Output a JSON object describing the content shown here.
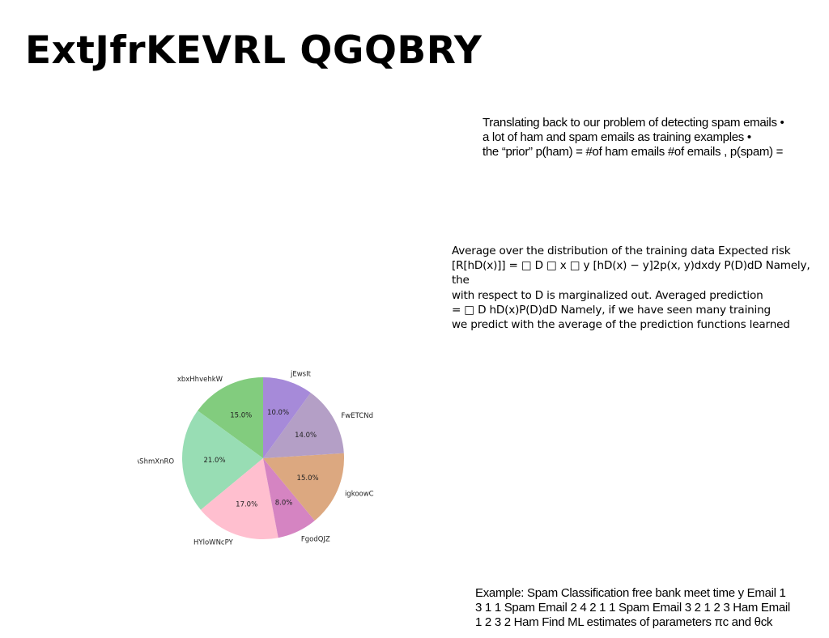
{
  "slide": {
    "title": "ExtJfrKEVRL QGQBRY",
    "block1": "Translating back to our problem of detecting spam emails •\n   a lot of ham and spam emails as training examples •\nthe “prior” p(ham) = #of ham emails #of emails , p(spam) =",
    "block2": "Average over the distribution of the training data Expected risk\n[R[hD(x)]] = □ D □ x □ y [hD(x) − y]2p(x, y)dxdy P(D)dD Namely, the\nwith respect to D is marginalized out. Averaged prediction\n= □ D hD(x)P(D)dD Namely, if we have seen many training\nwe predict with the average of the prediction functions learned",
    "block3": "Example: Spam Classification free bank meet time y Email 1\n3 1 1 Spam Email 2 4 2 1 1 Spam Email 3 2 1 2 3 Ham Email\n1 2 3 2 Ham Find ML estimates of parameters πc and θck"
  },
  "chart_data": {
    "type": "pie",
    "start_angle_deg": 90,
    "direction": "counterclockwise",
    "slices": [
      {
        "label": "xbxHhvehkW",
        "value": 15.0,
        "pct_label": "15.0%",
        "color": "#82cc7e"
      },
      {
        "label": "nXAShmXnRO",
        "value": 21.0,
        "pct_label": "21.0%",
        "color": "#98ddb4"
      },
      {
        "label": "HYloWNcPY",
        "value": 17.0,
        "pct_label": "17.0%",
        "color": "#ffbfcf"
      },
      {
        "label": "FgodQJZ",
        "value": 8.0,
        "pct_label": "8.0%",
        "color": "#d584c2"
      },
      {
        "label": "igkoowC",
        "value": 15.0,
        "pct_label": "15.0%",
        "color": "#dca880"
      },
      {
        "label": "FwETCNd",
        "value": 14.0,
        "pct_label": "14.0%",
        "color": "#b49fc6"
      },
      {
        "label": "jEwsIt",
        "value": 10.0,
        "pct_label": "10.0%",
        "color": "#a68ad9"
      }
    ]
  }
}
